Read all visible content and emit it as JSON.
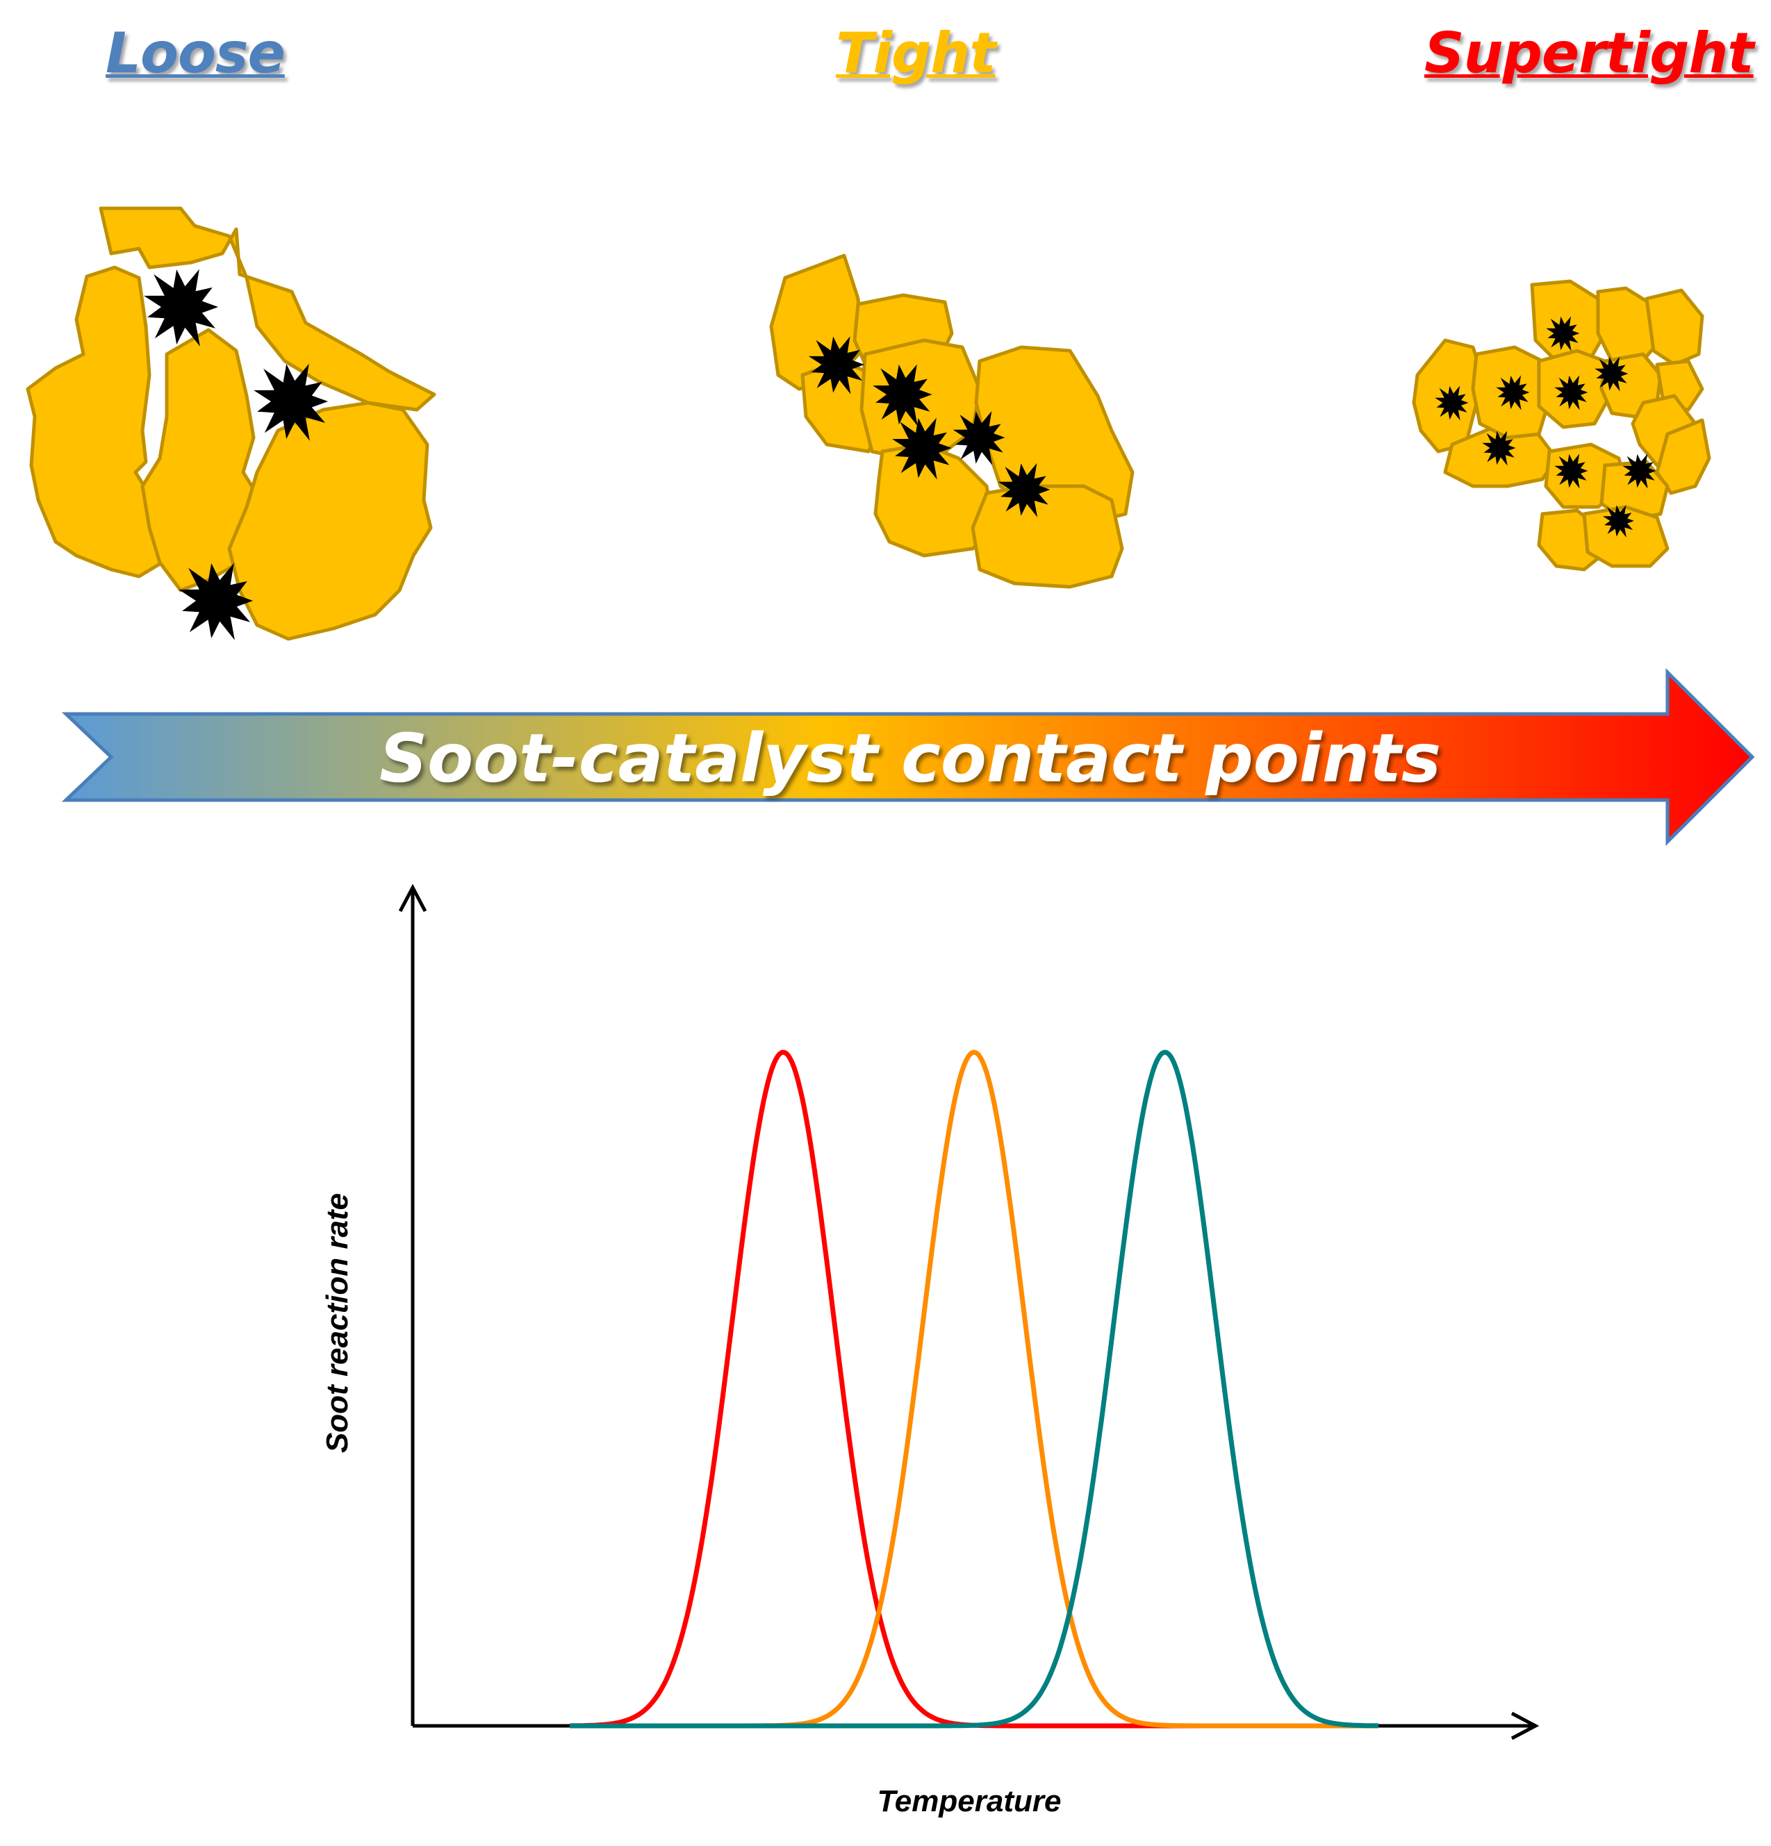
{
  "contact_levels": [
    {
      "label": "Loose",
      "color": "#4F81BD"
    },
    {
      "label": "Tight",
      "color": "#FFC000"
    },
    {
      "label": "Supertight",
      "color": "#FF0000"
    }
  ],
  "arrow": {
    "label": "Soot-catalyst contact points",
    "gradient": [
      "#5B9BD5",
      "#FFC000",
      "#FF0000"
    ]
  },
  "particle_colors": {
    "catalyst_fill": "#FFC000",
    "catalyst_stroke": "#BF9000",
    "soot": "#000000"
  },
  "chart_data": {
    "type": "line",
    "xlabel": "Temperature",
    "ylabel": "Soot reaction rate",
    "ticks": "none",
    "grid": false,
    "series": [
      {
        "color": "#FF0000",
        "peak_x": 0.33,
        "width": 0.045,
        "peak_y": 1.0
      },
      {
        "color": "#FF8C00",
        "peak_x": 0.5,
        "width": 0.045,
        "peak_y": 1.0
      },
      {
        "color": "#008080",
        "peak_x": 0.67,
        "width": 0.045,
        "peak_y": 1.0
      }
    ]
  }
}
